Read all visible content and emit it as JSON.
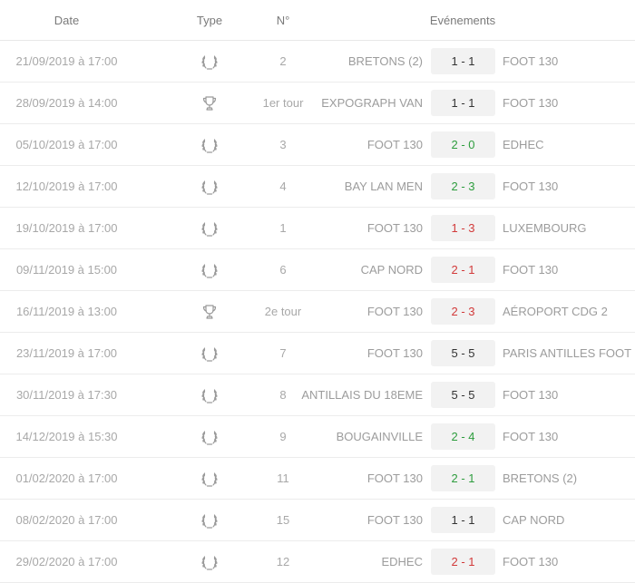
{
  "headers": {
    "date": "Date",
    "type": "Type",
    "number": "N°",
    "events": "Evénements"
  },
  "colors": {
    "win": "#2e9d3e",
    "loss": "#d23a3a",
    "neutral": "#333333"
  },
  "matches": [
    {
      "date": "21/09/2019 à 17:00",
      "type": "laurel-icon",
      "number": "2",
      "home": "BRETONS (2)",
      "score": "1 - 1",
      "away": "FOOT 130",
      "result": "neutral"
    },
    {
      "date": "28/09/2019 à 14:00",
      "type": "trophy-icon",
      "number": "1er tour",
      "home": "EXPOGRAPH VAN",
      "score": "1 - 1",
      "away": "FOOT 130",
      "result": "neutral"
    },
    {
      "date": "05/10/2019 à 17:00",
      "type": "laurel-icon",
      "number": "3",
      "home": "FOOT 130",
      "score": "2 - 0",
      "away": "EDHEC",
      "result": "win"
    },
    {
      "date": "12/10/2019 à 17:00",
      "type": "laurel-icon",
      "number": "4",
      "home": "BAY LAN MEN",
      "score": "2 - 3",
      "away": "FOOT 130",
      "result": "win"
    },
    {
      "date": "19/10/2019 à 17:00",
      "type": "laurel-icon",
      "number": "1",
      "home": "FOOT 130",
      "score": "1 - 3",
      "away": "LUXEMBOURG",
      "result": "loss"
    },
    {
      "date": "09/11/2019 à 15:00",
      "type": "laurel-icon",
      "number": "6",
      "home": "CAP NORD",
      "score": "2 - 1",
      "away": "FOOT 130",
      "result": "loss"
    },
    {
      "date": "16/11/2019 à 13:00",
      "type": "trophy-icon",
      "number": "2e tour",
      "home": "FOOT 130",
      "score": "2 - 3",
      "away": "AÉROPORT CDG 2",
      "result": "loss"
    },
    {
      "date": "23/11/2019 à 17:00",
      "type": "laurel-icon",
      "number": "7",
      "home": "FOOT 130",
      "score": "5 - 5",
      "away": "PARIS ANTILLES FOOT",
      "result": "neutral"
    },
    {
      "date": "30/11/2019 à 17:30",
      "type": "laurel-icon",
      "number": "8",
      "home": "ANTILLAIS DU 18EME",
      "score": "5 - 5",
      "away": "FOOT 130",
      "result": "neutral"
    },
    {
      "date": "14/12/2019 à 15:30",
      "type": "laurel-icon",
      "number": "9",
      "home": "BOUGAINVILLE",
      "score": "2 - 4",
      "away": "FOOT 130",
      "result": "win"
    },
    {
      "date": "01/02/2020 à 17:00",
      "type": "laurel-icon",
      "number": "11",
      "home": "FOOT 130",
      "score": "2 - 1",
      "away": "BRETONS (2)",
      "result": "win"
    },
    {
      "date": "08/02/2020 à 17:00",
      "type": "laurel-icon",
      "number": "15",
      "home": "FOOT 130",
      "score": "1 - 1",
      "away": "CAP NORD",
      "result": "neutral"
    },
    {
      "date": "29/02/2020 à 17:00",
      "type": "laurel-icon",
      "number": "12",
      "home": "EDHEC",
      "score": "2 - 1",
      "away": "FOOT 130",
      "result": "loss"
    }
  ]
}
